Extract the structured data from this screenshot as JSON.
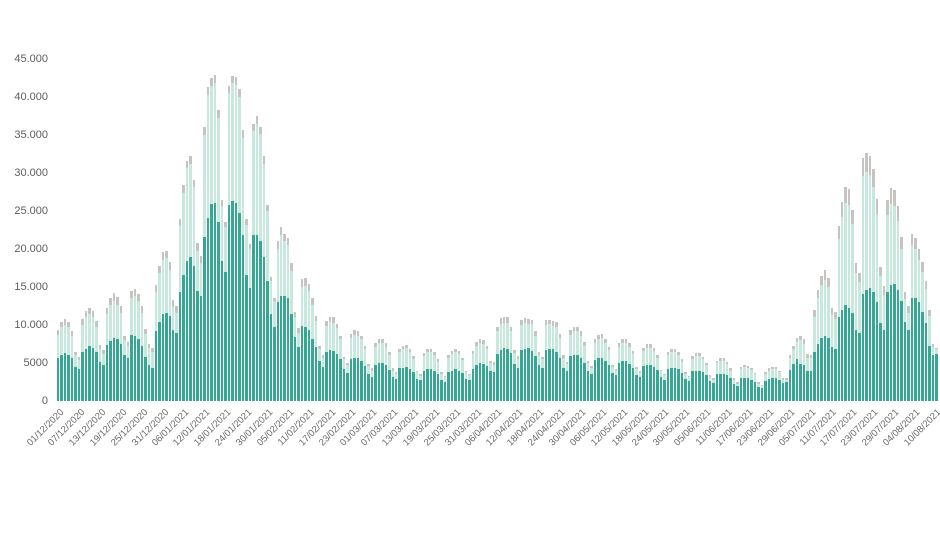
{
  "chart_data": {
    "type": "bar",
    "stacked": true,
    "title": "",
    "xlabel": "",
    "ylabel": "",
    "grid": false,
    "legend": false,
    "x_label_rotation": -45,
    "y_max": 45000,
    "y_ticks": [
      {
        "value": 0,
        "label": "0"
      },
      {
        "value": 5000,
        "label": "5000"
      },
      {
        "value": 10000,
        "label": "10.000"
      },
      {
        "value": 15000,
        "label": "15.000"
      },
      {
        "value": 20000,
        "label": "20.000"
      },
      {
        "value": 25000,
        "label": "25.000"
      },
      {
        "value": 30000,
        "label": "30.000"
      },
      {
        "value": 35000,
        "label": "35.000"
      },
      {
        "value": 40000,
        "label": "40.000"
      },
      {
        "value": 45000,
        "label": "45.000"
      }
    ],
    "tick_every": 6,
    "x_tick_labels": [
      "01/12/2020",
      "07/12/2020",
      "13/12/2020",
      "19/12/2020",
      "25/12/2020",
      "31/12/2020",
      "06/01/2021",
      "12/01/2021",
      "18/01/2021",
      "24/01/2021",
      "30/01/2021",
      "05/02/2021",
      "11/02/2021",
      "17/02/2021",
      "23/02/2021",
      "01/03/2021",
      "07/03/2021",
      "13/03/2021",
      "19/03/2021",
      "25/03/2021",
      "31/03/2021",
      "06/04/2021",
      "12/04/2021",
      "18/04/2021",
      "24/04/2021",
      "30/04/2021",
      "06/05/2021",
      "12/05/2021",
      "18/05/2021",
      "24/05/2021",
      "30/05/2021",
      "05/06/2021",
      "11/06/2021",
      "17/06/2021",
      "23/06/2021",
      "29/06/2021",
      "05/07/2021",
      "11/07/2021",
      "17/07/2021",
      "23/07/2021",
      "29/07/2021",
      "04/08/2021",
      "10/08/2021"
    ],
    "series": [
      {
        "name": "series-dark-teal",
        "color": "#34a893",
        "values": [
          5600,
          6000,
          6300,
          6100,
          5600,
          4500,
          4200,
          6500,
          6900,
          7200,
          7000,
          6500,
          5100,
          4800,
          7400,
          7900,
          8300,
          8100,
          7500,
          6000,
          5600,
          8700,
          8600,
          8200,
          7300,
          5800,
          4800,
          4400,
          9200,
          10400,
          11400,
          11600,
          11200,
          9300,
          9000,
          14400,
          16600,
          18400,
          19000,
          17800,
          14500,
          13800,
          21600,
          24100,
          25900,
          26000,
          23500,
          18400,
          17000,
          25800,
          26300,
          26000,
          24800,
          21800,
          16600,
          14900,
          21900,
          21900,
          21100,
          19000,
          15800,
          11400,
          9800,
          13000,
          13800,
          13800,
          13600,
          11500,
          8400,
          7100,
          9900,
          9800,
          9300,
          8200,
          7100,
          5300,
          4500,
          6500,
          6700,
          6600,
          6200,
          5500,
          4200,
          3700,
          5500,
          5600,
          5600,
          5200,
          4600,
          3500,
          3200,
          4800,
          5000,
          5000,
          4700,
          4100,
          3200,
          2900,
          4300,
          4400,
          4500,
          4200,
          3800,
          2900,
          2700,
          4000,
          4200,
          4200,
          4000,
          3500,
          2800,
          2500,
          3800,
          4000,
          4200,
          4000,
          3700,
          2900,
          2700,
          4200,
          4700,
          5000,
          4900,
          4600,
          3900,
          3800,
          6200,
          6700,
          7000,
          6800,
          6300,
          4900,
          4400,
          6700,
          6900,
          7000,
          6600,
          5900,
          4700,
          4400,
          6700,
          6900,
          6900,
          6400,
          5700,
          4400,
          3900,
          5900,
          6000,
          6000,
          5700,
          5000,
          4000,
          3600,
          5400,
          5600,
          5700,
          5300,
          4800,
          3700,
          3400,
          5000,
          5200,
          5200,
          4900,
          4400,
          3400,
          3100,
          4600,
          4800,
          4800,
          4500,
          4100,
          3100,
          2800,
          4200,
          4400,
          4400,
          4200,
          3700,
          2900,
          2600,
          3900,
          4000,
          4000,
          3800,
          3400,
          2600,
          2400,
          3500,
          3600,
          3600,
          3400,
          3000,
          2300,
          2000,
          3000,
          3000,
          3000,
          2800,
          2500,
          1900,
          1700,
          2600,
          2900,
          3000,
          3000,
          2800,
          2400,
          2500,
          4100,
          4900,
          5500,
          4900,
          4700,
          4000,
          4000,
          6500,
          7500,
          8300,
          8600,
          8300,
          7100,
          6900,
          11000,
          12000,
          12600,
          12300,
          11600,
          9300,
          8900,
          14100,
          14600,
          14900,
          14300,
          13000,
          10300,
          9400,
          14300,
          15200,
          15400,
          14600,
          13200,
          10400,
          9300,
          13600,
          13500,
          13000,
          11700,
          10200,
          7300,
          6100,
          6200
        ]
      },
      {
        "name": "series-light-green",
        "color": "#c7e8dc",
        "values": [
          3100,
          3700,
          3700,
          3600,
          3000,
          1500,
          1200,
          3500,
          4200,
          4200,
          4100,
          3300,
          1800,
          1400,
          4000,
          4700,
          4900,
          4600,
          4100,
          2000,
          1700,
          4800,
          5200,
          4900,
          4300,
          3000,
          2200,
          2100,
          5100,
          6400,
          7200,
          7200,
          6100,
          3100,
          2600,
          8600,
          10800,
          12200,
          12200,
          10300,
          5300,
          4300,
          13400,
          16200,
          15600,
          15900,
          13800,
          7300,
          5900,
          14700,
          15500,
          15600,
          15200,
          12800,
          6600,
          5100,
          13600,
          14600,
          14000,
          12200,
          9200,
          4400,
          3400,
          7000,
          8100,
          7200,
          6900,
          5600,
          2600,
          1900,
          5100,
          5400,
          5200,
          4500,
          3400,
          1600,
          1200,
          3400,
          3700,
          3700,
          3400,
          2600,
          1300,
          1000,
          2800,
          3100,
          3000,
          2900,
          2300,
          1100,
          800,
          2300,
          2600,
          2600,
          2400,
          1900,
          800,
          700,
          2100,
          2400,
          2500,
          2300,
          1700,
          900,
          600,
          1900,
          2200,
          2200,
          2000,
          1700,
          800,
          600,
          1800,
          2200,
          2200,
          2200,
          1700,
          900,
          700,
          2000,
          2500,
          2600,
          2600,
          2200,
          1100,
          1000,
          3000,
          3500,
          3300,
          3500,
          2900,
          1400,
          1100,
          3300,
          3300,
          3200,
          3500,
          2700,
          1300,
          1100,
          3300,
          3200,
          3000,
          3400,
          2600,
          1200,
          1000,
          2800,
          3200,
          3200,
          2900,
          2200,
          1000,
          700,
          2300,
          2600,
          2600,
          2400,
          1900,
          800,
          500,
          2100,
          2400,
          2400,
          2200,
          1800,
          800,
          600,
          2000,
          2200,
          2200,
          2100,
          1500,
          800,
          600,
          1800,
          2000,
          2100,
          1800,
          1500,
          700,
          500,
          1600,
          1900,
          1900,
          1700,
          1300,
          600,
          400,
          1500,
          1700,
          1700,
          1500,
          1000,
          500,
          300,
          1200,
          1500,
          1300,
          1300,
          1000,
          400,
          300,
          1000,
          1100,
          1200,
          1200,
          1000,
          400,
          300,
          1500,
          2000,
          2300,
          3100,
          2800,
          1700,
          1600,
          4600,
          6000,
          7000,
          7300,
          6700,
          4200,
          3900,
          10300,
          12200,
          13400,
          13500,
          11700,
          7500,
          6700,
          15500,
          15600,
          14900,
          13900,
          11600,
          6100,
          4600,
          10200,
          10700,
          10300,
          9100,
          6800,
          3000,
          2300,
          6900,
          6500,
          5600,
          5300,
          4500,
          3900,
          1000,
          600
        ]
      },
      {
        "name": "series-gray",
        "color": "#c7c3c1",
        "values": [
          700,
          700,
          800,
          700,
          600,
          400,
          400,
          800,
          800,
          900,
          800,
          700,
          500,
          500,
          900,
          1000,
          1000,
          1000,
          900,
          600,
          500,
          1000,
          1000,
          1000,
          900,
          700,
          500,
          500,
          1000,
          1000,
          1000,
          1000,
          1000,
          900,
          900,
          1000,
          1000,
          1000,
          1000,
          1000,
          1000,
          1000,
          1000,
          1000,
          1000,
          1000,
          1000,
          800,
          700,
          1000,
          1000,
          1000,
          1000,
          1000,
          700,
          600,
          1000,
          1000,
          1000,
          1000,
          800,
          500,
          400,
          1000,
          1000,
          1000,
          1000,
          1000,
          700,
          600,
          1000,
          1000,
          900,
          800,
          700,
          400,
          400,
          600,
          700,
          700,
          600,
          500,
          300,
          300,
          500,
          600,
          600,
          500,
          400,
          300,
          300,
          500,
          500,
          500,
          500,
          400,
          300,
          200,
          400,
          400,
          400,
          400,
          400,
          200,
          200,
          400,
          400,
          400,
          400,
          300,
          200,
          200,
          400,
          400,
          400,
          400,
          300,
          200,
          200,
          400,
          500,
          500,
          500,
          400,
          300,
          300,
          600,
          700,
          700,
          700,
          600,
          400,
          400,
          600,
          700,
          600,
          600,
          600,
          400,
          300,
          600,
          600,
          600,
          600,
          500,
          400,
          300,
          600,
          600,
          600,
          600,
          500,
          300,
          300,
          500,
          500,
          500,
          500,
          400,
          300,
          300,
          500,
          500,
          500,
          500,
          400,
          300,
          200,
          400,
          500,
          500,
          400,
          400,
          200,
          200,
          400,
          400,
          400,
          400,
          300,
          200,
          200,
          400,
          400,
          400,
          300,
          300,
          200,
          200,
          300,
          300,
          300,
          300,
          300,
          200,
          200,
          300,
          300,
          300,
          300,
          200,
          200,
          100,
          200,
          300,
          300,
          300,
          200,
          200,
          200,
          400,
          400,
          500,
          600,
          600,
          500,
          500,
          900,
          1100,
          1200,
          1300,
          1200,
          900,
          900,
          1700,
          2000,
          2100,
          2100,
          1900,
          1400,
          1300,
          2400,
          2400,
          2400,
          2300,
          2000,
          1300,
          1100,
          2000,
          2100,
          2100,
          1900,
          1600,
          1000,
          900,
          1500,
          1500,
          1400,
          1300,
          1100,
          800,
          400,
          200
        ]
      }
    ]
  }
}
